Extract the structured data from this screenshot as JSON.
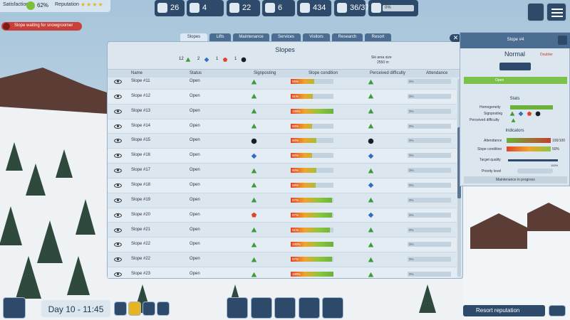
{
  "top_left": {
    "satisfaction_label": "Satisfaction",
    "satisfaction": "62%",
    "reputation_label": "Reputation",
    "alert": "Slope waiting for snowgroomer"
  },
  "resources": [
    "26",
    "4",
    "22",
    "6",
    "434",
    "36/37",
    "0%"
  ],
  "tabs": [
    "Slopes",
    "Lifts",
    "Maintenance",
    "Services",
    "Visitors",
    "Research",
    "Resort"
  ],
  "panel": {
    "title": "Slopes",
    "summary": [
      {
        "count": 12,
        "shape": "green"
      },
      {
        "count": 2,
        "shape": "blue"
      },
      {
        "count": 1,
        "shape": "red"
      },
      {
        "count": 1,
        "shape": "black"
      }
    ],
    "area_label": "Ski area size",
    "area_value": "2550 m",
    "columns": [
      "Name",
      "Status",
      "Signposting",
      "Slope condition",
      "Perceived difficulty",
      "Attendance"
    ],
    "rows": [
      {
        "name": "Slope #11",
        "status": "Open",
        "signposting": "green",
        "condition": 55,
        "condition_label": "55%",
        "difficulty": "green",
        "attendance": 0,
        "attendance_label": "0%"
      },
      {
        "name": "Slope #12",
        "status": "Open",
        "signposting": "green",
        "condition": 51,
        "condition_label": "51%",
        "difficulty": "green",
        "attendance": 0,
        "attendance_label": "0%"
      },
      {
        "name": "Slope #13",
        "status": "Open",
        "signposting": "green",
        "condition": 100,
        "condition_label": "100%",
        "difficulty": "green",
        "attendance": 0,
        "attendance_label": "0%"
      },
      {
        "name": "Slope #14",
        "status": "Open",
        "signposting": "green",
        "condition": 50,
        "condition_label": "50%",
        "difficulty": "green",
        "attendance": 0,
        "attendance_label": "0%"
      },
      {
        "name": "Slope #15",
        "status": "Open",
        "signposting": "black",
        "condition": 60,
        "condition_label": "60%",
        "difficulty": "black",
        "attendance": 0,
        "attendance_label": "0%"
      },
      {
        "name": "Slope #16",
        "status": "Open",
        "signposting": "blue",
        "condition": 50,
        "condition_label": "50%",
        "difficulty": "blue",
        "attendance": 0,
        "attendance_label": "0%"
      },
      {
        "name": "Slope #17",
        "status": "Open",
        "signposting": "green",
        "condition": 60,
        "condition_label": "60%",
        "difficulty": "green",
        "attendance": 0,
        "attendance_label": "0%"
      },
      {
        "name": "Slope #18",
        "status": "Open",
        "signposting": "green",
        "condition": 59,
        "condition_label": "59%",
        "difficulty": "blue",
        "attendance": 0,
        "attendance_label": "0%"
      },
      {
        "name": "Slope #19",
        "status": "Open",
        "signposting": "green",
        "condition": 97,
        "condition_label": "97%",
        "difficulty": "green",
        "attendance": 0,
        "attendance_label": "0%"
      },
      {
        "name": "Slope #20",
        "status": "Open",
        "signposting": "red",
        "condition": 97,
        "condition_label": "97%",
        "difficulty": "blue",
        "attendance": 0,
        "attendance_label": "0%"
      },
      {
        "name": "Slope #21",
        "status": "Open",
        "signposting": "green",
        "condition": 91,
        "condition_label": "91%",
        "difficulty": "green",
        "attendance": 0,
        "attendance_label": "0%"
      },
      {
        "name": "Slope #22",
        "status": "Open",
        "signposting": "green",
        "condition": 100,
        "condition_label": "100%",
        "difficulty": "green",
        "attendance": 0,
        "attendance_label": "0%"
      },
      {
        "name": "Slope #22",
        "status": "Open",
        "signposting": "green",
        "condition": 97,
        "condition_label": "97%",
        "difficulty": "green",
        "attendance": 0,
        "attendance_label": "0%"
      },
      {
        "name": "Slope #23",
        "status": "Open",
        "signposting": "green",
        "condition": 100,
        "condition_label": "100%",
        "difficulty": "green",
        "attendance": 0,
        "attendance_label": "0%"
      }
    ]
  },
  "detail": {
    "title": "Slope #4",
    "mode": "Normal",
    "tag": "Doubter",
    "status": "Open",
    "stats_title": "Stats",
    "homogeneity": "Homogeneity",
    "signposting": "Signposting",
    "difficulty": "Perceived difficulty",
    "indicators_title": "Indicators",
    "attendance": "Attendance",
    "attendance_value": "100/100",
    "condition": "Slope condition",
    "condition_value": "50%",
    "target": "Target quality",
    "target_value": "100%",
    "priority": "Priority level",
    "maintenance": "Maintenance in progress"
  },
  "bottom": {
    "time": "Day 10 - 11:45",
    "reputation": "Resort reputation"
  }
}
